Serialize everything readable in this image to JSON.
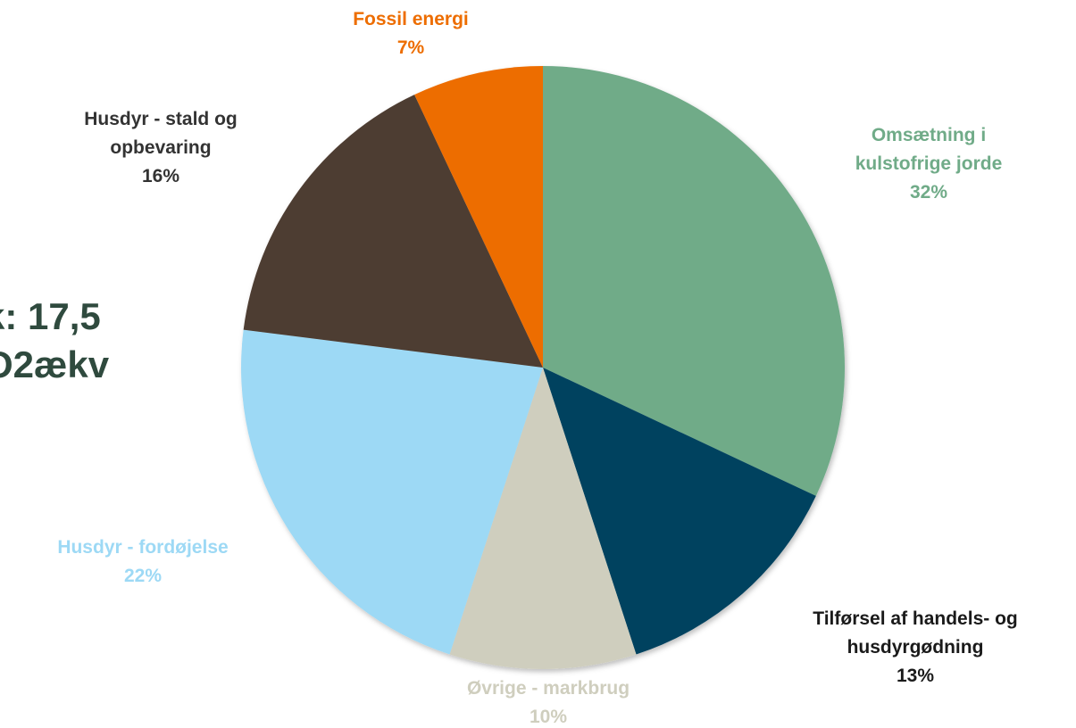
{
  "side_text": {
    "line1": "k: 17,5",
    "line2": "O2ækv"
  },
  "chart_data": {
    "type": "pie",
    "title": "",
    "slices": [
      {
        "lines": [
          "Omsætning i",
          "kulstofrige jorde"
        ],
        "pct_label": "32%",
        "value": 32,
        "color": "#70ab88"
      },
      {
        "lines": [
          "Tilførsel af handels- og",
          "husdyrgødning"
        ],
        "pct_label": "13%",
        "value": 13,
        "color": "#00425f"
      },
      {
        "lines": [
          "Øvrige - markbrug"
        ],
        "pct_label": "10%",
        "value": 10,
        "color": "#cfcebe"
      },
      {
        "lines": [
          "Husdyr - fordøjelse"
        ],
        "pct_label": "22%",
        "value": 22,
        "color": "#9dd9f5"
      },
      {
        "lines": [
          "Husdyr - stald og",
          "opbevaring"
        ],
        "pct_label": "16%",
        "value": 16,
        "color": "#4e3c30"
      },
      {
        "lines": [
          "Fossil energi"
        ],
        "pct_label": "7%",
        "value": 7,
        "color": "#ed6d00"
      }
    ],
    "label_colors": [
      "#70ab88",
      "#1a1a1a",
      "#cfcebe",
      "#9dd9f5",
      "#333333",
      "#ed6d00"
    ]
  }
}
